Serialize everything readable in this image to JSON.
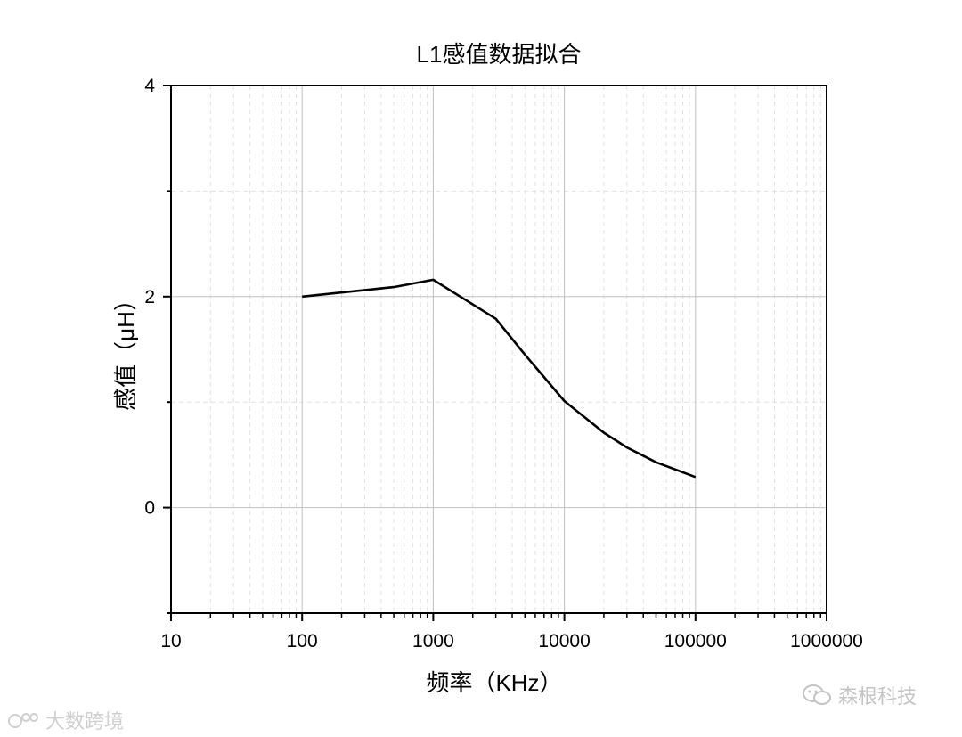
{
  "chart_data": {
    "type": "line",
    "title": "L1感值数据拟合",
    "xlabel": "频率（KHz）",
    "ylabel": "感值（μH）",
    "x_scale": "log",
    "xlim": [
      10,
      1000000
    ],
    "ylim": [
      -1,
      4
    ],
    "x_ticks": [
      "10",
      "100",
      "1000",
      "10000",
      "100000",
      "1000000"
    ],
    "y_ticks": [
      "0",
      "2",
      "4"
    ],
    "grid": true,
    "series": [
      {
        "color": "#000000",
        "x": [
          100,
          500,
          1000,
          3000,
          5000,
          10000,
          20000,
          30000,
          50000,
          100000
        ],
        "y": [
          2.0,
          2.09,
          2.16,
          1.79,
          1.45,
          1.01,
          0.71,
          0.57,
          0.43,
          0.29
        ]
      }
    ]
  },
  "watermarks": {
    "left": "大数跨境",
    "right": "森根科技"
  }
}
